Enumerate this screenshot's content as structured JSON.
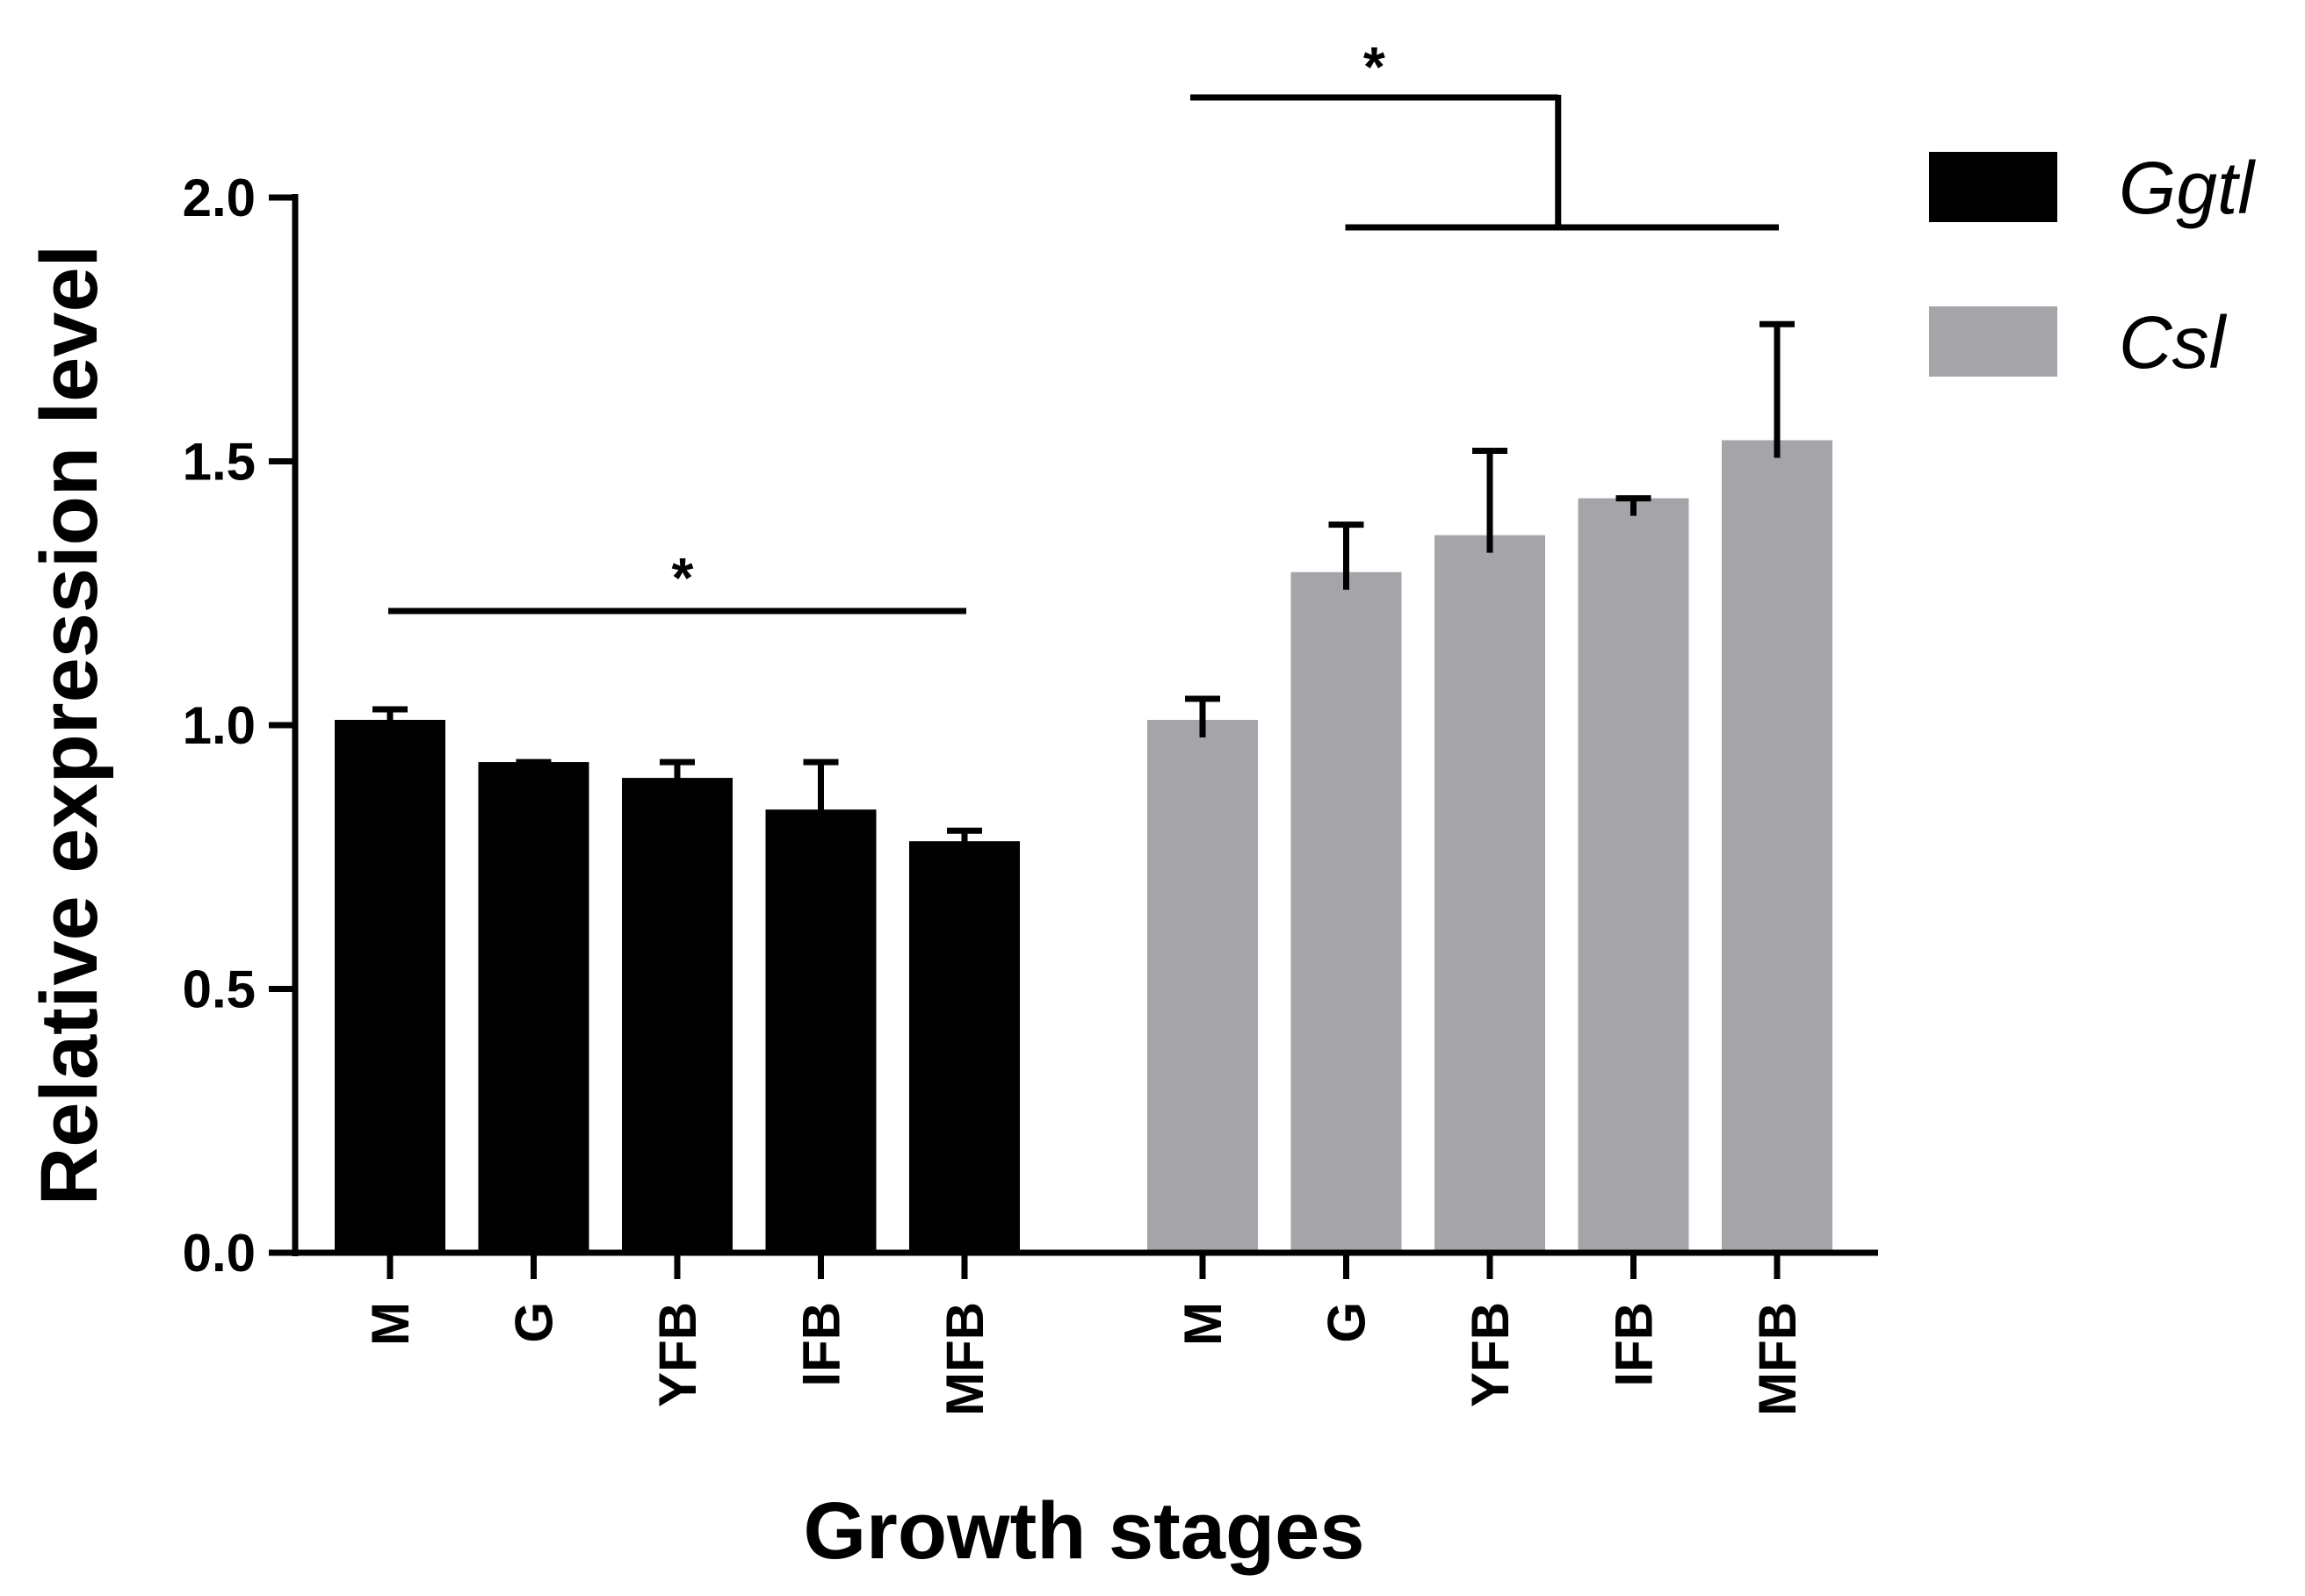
{
  "chart_data": {
    "type": "bar",
    "title": "",
    "xlabel": "Growth stages",
    "ylabel": "Relative expression level",
    "ylim": [
      0,
      2.0
    ],
    "yticks": [
      0.0,
      0.5,
      1.0,
      1.5,
      2.0
    ],
    "ytick_labels": [
      "0.0",
      "0.5",
      "1.0",
      "1.5",
      "2.0"
    ],
    "categories": [
      "M",
      "G",
      "YFB",
      "IFB",
      "MFB"
    ],
    "series": [
      {
        "name": "Ggtl",
        "color": "#000000",
        "values": [
          1.01,
          0.93,
          0.9,
          0.84,
          0.78
        ],
        "errors": [
          0.02,
          0.0,
          0.03,
          0.09,
          0.02
        ]
      },
      {
        "name": "Csl",
        "color": "#a5a4a8",
        "values": [
          1.01,
          1.29,
          1.36,
          1.43,
          1.54
        ],
        "errors": [
          0.04,
          0.09,
          0.16,
          0.0,
          0.22
        ]
      }
    ],
    "legend": {
      "position": "top-right",
      "entries": [
        "Ggtl",
        "Csl"
      ]
    },
    "grid": false,
    "annotations": [
      {
        "type": "significance-bracket",
        "series": "Ggtl",
        "from": "M",
        "to": "MFB",
        "label": "*"
      },
      {
        "type": "significance-bracket",
        "series": "Csl",
        "from": "M",
        "to": "G–MFB",
        "label": "*"
      }
    ]
  }
}
